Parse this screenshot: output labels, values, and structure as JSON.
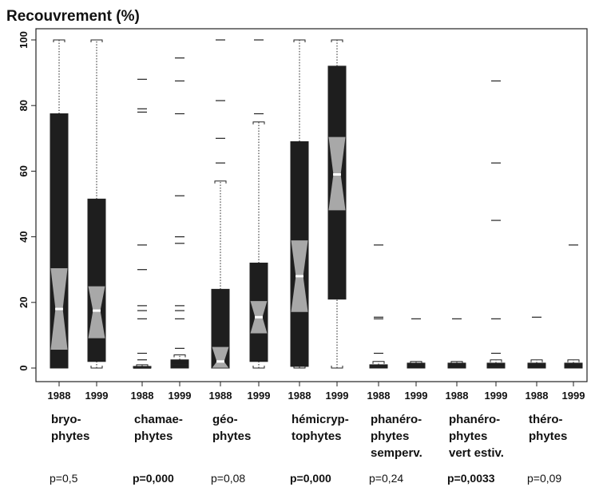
{
  "chart_data": {
    "type": "boxplot",
    "title": "Recouvrement (%)",
    "ylim": [
      0,
      100
    ],
    "yticks": [
      0,
      20,
      40,
      60,
      80,
      100
    ],
    "notched": true,
    "box_color": "#1e1e1e",
    "notch_color": "#a8a8a8",
    "boxes": [
      {
        "label": "1988",
        "whisker_low": 0,
        "q1": 0,
        "notch_low": 5.5,
        "median": 18,
        "notch_high": 30.5,
        "q3": 77.5,
        "whisker_high": 100,
        "outliers": []
      },
      {
        "label": "1999",
        "whisker_low": 0,
        "q1": 2,
        "notch_low": 9,
        "median": 17.5,
        "notch_high": 25,
        "q3": 51.5,
        "whisker_high": 100,
        "outliers": []
      },
      {
        "label": "1988",
        "whisker_low": 0,
        "q1": 0,
        "median": 0,
        "q3": 0.5,
        "whisker_high": 1,
        "outliers": [
          88,
          79,
          78,
          37.5,
          30,
          19,
          17.5,
          15,
          4.5,
          2.5
        ]
      },
      {
        "label": "1999",
        "whisker_low": 0,
        "q1": 0,
        "median": 1,
        "q3": 2.5,
        "whisker_high": 4,
        "outliers": [
          94.5,
          87.5,
          77.5,
          52.5,
          40,
          38,
          19,
          17.5,
          15,
          6
        ]
      },
      {
        "label": "1988",
        "whisker_low": 0,
        "q1": 0,
        "notch_low": 0,
        "median": 2,
        "notch_high": 6.5,
        "q3": 24,
        "whisker_high": 57,
        "outliers": [
          100,
          81.5,
          70,
          62.5
        ]
      },
      {
        "label": "1999",
        "whisker_low": 0,
        "q1": 2,
        "notch_low": 10.5,
        "median": 15.5,
        "notch_high": 20.5,
        "q3": 32,
        "whisker_high": 75,
        "outliers": [
          100,
          77.5
        ]
      },
      {
        "label": "1988",
        "whisker_low": 0,
        "q1": 0.5,
        "notch_low": 17,
        "median": 28,
        "notch_high": 39,
        "q3": 69,
        "whisker_high": 100,
        "outliers": []
      },
      {
        "label": "1999",
        "whisker_low": 0,
        "q1": 21,
        "notch_low": 48,
        "median": 59,
        "notch_high": 70.5,
        "q3": 92,
        "whisker_high": 100,
        "outliers": []
      },
      {
        "label": "1988",
        "whisker_low": 0,
        "q1": 0,
        "median": 0.5,
        "q3": 1,
        "whisker_high": 2,
        "outliers": [
          37.5,
          15.5,
          15,
          4.5
        ]
      },
      {
        "label": "1999",
        "whisker_low": 0,
        "q1": 0,
        "median": 1,
        "q3": 1.5,
        "whisker_high": 2,
        "outliers": [
          15
        ]
      },
      {
        "label": "1988",
        "whisker_low": 0,
        "q1": 0,
        "median": 1,
        "q3": 1.5,
        "whisker_high": 2,
        "outliers": [
          15
        ]
      },
      {
        "label": "1999",
        "whisker_low": 0,
        "q1": 0,
        "median": 0.5,
        "q3": 1.5,
        "whisker_high": 2.5,
        "outliers": [
          87.5,
          62.5,
          45,
          15,
          4.5
        ]
      },
      {
        "label": "1988",
        "whisker_low": 0,
        "q1": 0,
        "median": 1,
        "q3": 1.5,
        "whisker_high": 2.5,
        "outliers": [
          15.5
        ]
      },
      {
        "label": "1999",
        "whisker_low": 0,
        "q1": 0,
        "median": 1,
        "q3": 1.5,
        "whisker_high": 2.5,
        "outliers": [
          37.5
        ]
      }
    ],
    "groups": [
      {
        "lines": [
          "bryo-",
          "phytes"
        ],
        "p": "p=0,5",
        "p_bold": false
      },
      {
        "lines": [
          "chamae-",
          "phytes"
        ],
        "p": "p=0,000",
        "p_bold": true
      },
      {
        "lines": [
          "géo-",
          "phytes"
        ],
        "p": "p=0,08",
        "p_bold": false
      },
      {
        "lines": [
          "hémicryp-",
          "tophytes"
        ],
        "p": "p=0,000",
        "p_bold": true
      },
      {
        "lines": [
          "phanéro-",
          "phytes",
          "semperv."
        ],
        "p": "p=0,24",
        "p_bold": false
      },
      {
        "lines": [
          "phanéro-",
          "phytes",
          "vert estiv."
        ],
        "p": "p=0,0033",
        "p_bold": true
      },
      {
        "lines": [
          "théro-",
          "phytes"
        ],
        "p": "p=0,09",
        "p_bold": false
      }
    ]
  }
}
